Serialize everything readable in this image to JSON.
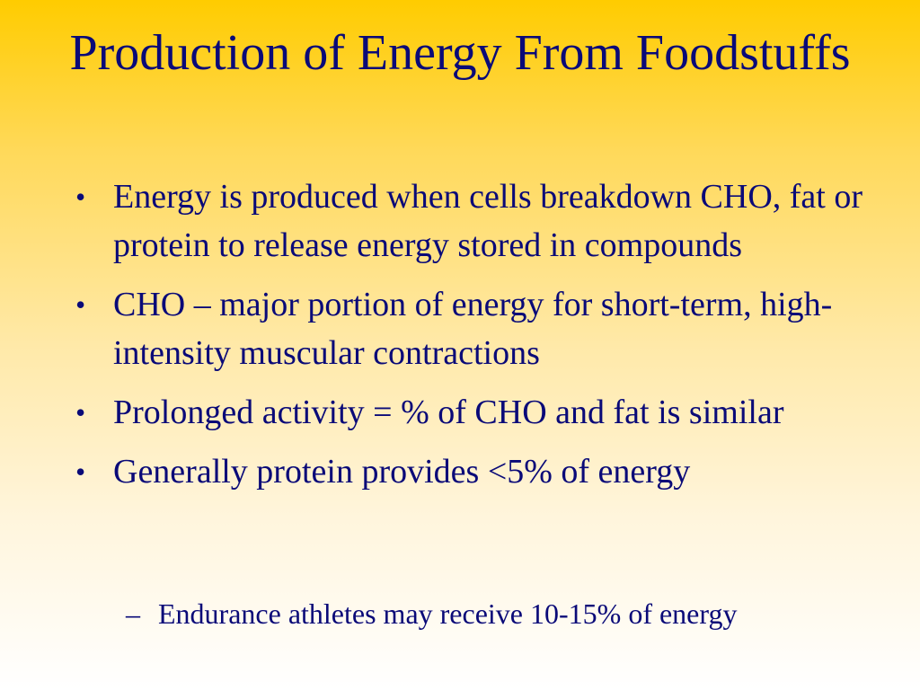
{
  "slide": {
    "title": "Production of Energy From Foodstuffs",
    "bullets": [
      {
        "marker": "•",
        "text": "Energy is produced when cells breakdown CHO, fat or protein to release energy stored in compounds"
      },
      {
        "marker": "•",
        "text": "CHO – major portion of energy for short-term, high-intensity muscular contractions"
      },
      {
        "marker": "•",
        "text": "Prolonged activity = % of CHO and fat is similar"
      },
      {
        "marker": "•",
        "text": "Generally protein provides <5% of energy"
      }
    ],
    "sub_bullets": [
      {
        "marker": "–",
        "text": "Endurance athletes may receive 10-15% of energy"
      }
    ],
    "colors": {
      "text": "#0a0a78",
      "background_top": "#ffcc00",
      "background_bottom": "#ffffff"
    }
  }
}
